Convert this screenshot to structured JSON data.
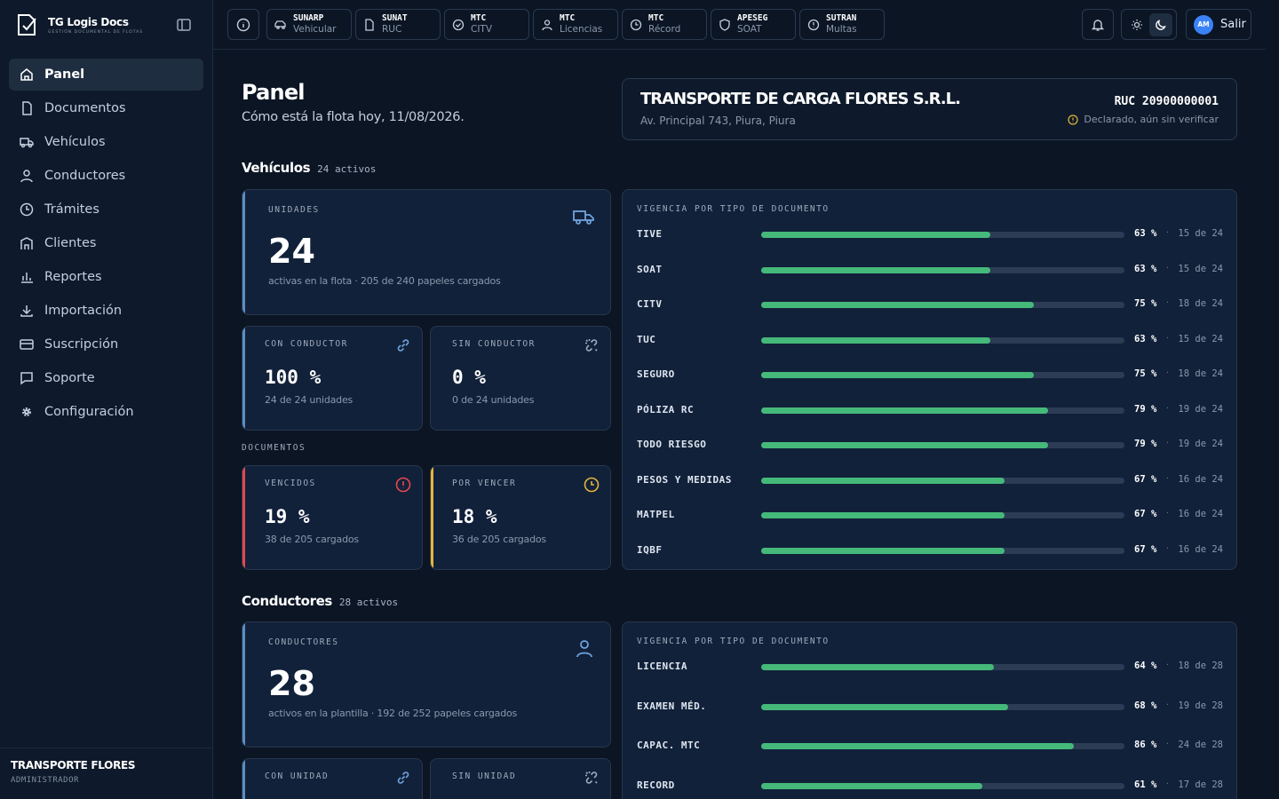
{
  "brand": {
    "name": "TG Logis Docs",
    "tagline": "GESTIÓN DOCUMENTAL DE FLOTAS"
  },
  "sidebar": {
    "items": [
      {
        "label": "Panel",
        "icon": "home-icon"
      },
      {
        "label": "Documentos",
        "icon": "document-icon"
      },
      {
        "label": "Vehículos",
        "icon": "truck-icon"
      },
      {
        "label": "Conductores",
        "icon": "user-icon"
      },
      {
        "label": "Trámites",
        "icon": "clock-icon"
      },
      {
        "label": "Clientes",
        "icon": "building-icon"
      },
      {
        "label": "Reportes",
        "icon": "chart-icon"
      },
      {
        "label": "Importación",
        "icon": "download-icon"
      },
      {
        "label": "Suscripción",
        "icon": "credit-card-icon"
      },
      {
        "label": "Soporte",
        "icon": "chat-icon"
      },
      {
        "label": "Configuración",
        "icon": "gear-icon"
      }
    ],
    "active": "Panel",
    "footer": {
      "company": "TRANSPORTE FLORES",
      "role": "ADMINISTRADOR"
    }
  },
  "topbar": {
    "chips": [
      {
        "title": "SUNARP",
        "sub": "Vehicular",
        "icon": "car-icon"
      },
      {
        "title": "SUNAT",
        "sub": "RUC",
        "icon": "file-icon"
      },
      {
        "title": "MTC",
        "sub": "CITV",
        "icon": "check-circle-icon"
      },
      {
        "title": "MTC",
        "sub": "Licencias",
        "icon": "user-icon"
      },
      {
        "title": "MTC",
        "sub": "Récord",
        "icon": "clock-icon"
      },
      {
        "title": "APESEG",
        "sub": "SOAT",
        "icon": "shield-icon"
      },
      {
        "title": "SUTRAN",
        "sub": "Multas",
        "icon": "alert-icon"
      }
    ],
    "user": {
      "initials": "AM",
      "logout_label": "Salir"
    }
  },
  "header": {
    "title": "Panel",
    "subtitle": "Cómo está la flota hoy, 11/08/2026."
  },
  "company": {
    "name": "TRANSPORTE DE CARGA FLORES S.R.L.",
    "address": "Av. Principal 743, Piura, Piura",
    "ruc": "RUC 20900000001",
    "status": "Declarado, aún sin verificar"
  },
  "vehicles": {
    "title": "Vehículos",
    "count": "24 activos",
    "units": {
      "label": "UNIDADES",
      "value": "24",
      "desc": "activas en la flota · 205 de 240 papeles cargados"
    },
    "with_driver": {
      "label": "CON CONDUCTOR",
      "value": "100 %",
      "desc": "24 de 24 unidades"
    },
    "without_driver": {
      "label": "SIN CONDUCTOR",
      "value": "0 %",
      "desc": "0 de 24 unidades"
    },
    "documents_label": "DOCUMENTOS",
    "expired": {
      "label": "VENCIDOS",
      "value": "19 %",
      "desc": "38 de 205 cargados"
    },
    "expiring": {
      "label": "POR VENCER",
      "value": "18 %",
      "desc": "36 de 205 cargados"
    },
    "validity": {
      "title": "VIGENCIA POR TIPO DE DOCUMENTO",
      "rows": [
        {
          "name": "TIVE",
          "pct": 63,
          "pct_label": "63 %",
          "of": "15 de 24"
        },
        {
          "name": "SOAT",
          "pct": 63,
          "pct_label": "63 %",
          "of": "15 de 24"
        },
        {
          "name": "CITV",
          "pct": 75,
          "pct_label": "75 %",
          "of": "18 de 24"
        },
        {
          "name": "TUC",
          "pct": 63,
          "pct_label": "63 %",
          "of": "15 de 24"
        },
        {
          "name": "SEGURO",
          "pct": 75,
          "pct_label": "75 %",
          "of": "18 de 24"
        },
        {
          "name": "PÓLIZA RC",
          "pct": 79,
          "pct_label": "79 %",
          "of": "19 de 24"
        },
        {
          "name": "TODO RIESGO",
          "pct": 79,
          "pct_label": "79 %",
          "of": "19 de 24"
        },
        {
          "name": "PESOS Y MEDIDAS",
          "pct": 67,
          "pct_label": "67 %",
          "of": "16 de 24"
        },
        {
          "name": "MATPEL",
          "pct": 67,
          "pct_label": "67 %",
          "of": "16 de 24"
        },
        {
          "name": "IQBF",
          "pct": 67,
          "pct_label": "67 %",
          "of": "16 de 24"
        }
      ]
    }
  },
  "drivers": {
    "title": "Conductores",
    "count": "28 activos",
    "total": {
      "label": "CONDUCTORES",
      "value": "28",
      "desc": "activos en la plantilla · 192 de 252 papeles cargados"
    },
    "with_unit": {
      "label": "CON UNIDAD"
    },
    "without_unit": {
      "label": "SIN UNIDAD"
    },
    "validity": {
      "title": "VIGENCIA POR TIPO DE DOCUMENTO",
      "rows": [
        {
          "name": "LICENCIA",
          "pct": 64,
          "pct_label": "64 %",
          "of": "18 de 28"
        },
        {
          "name": "EXAMEN MÉD.",
          "pct": 68,
          "pct_label": "68 %",
          "of": "19 de 28"
        },
        {
          "name": "CAPAC. MTC",
          "pct": 86,
          "pct_label": "86 %",
          "of": "24 de 28"
        },
        {
          "name": "RECORD",
          "pct": 61,
          "pct_label": "61 %",
          "of": "17 de 28"
        }
      ]
    }
  },
  "colors": {
    "accent": "#5b8ec4",
    "bar": "#45b97a",
    "danger": "#e5484d",
    "warning": "#e5b53a"
  }
}
